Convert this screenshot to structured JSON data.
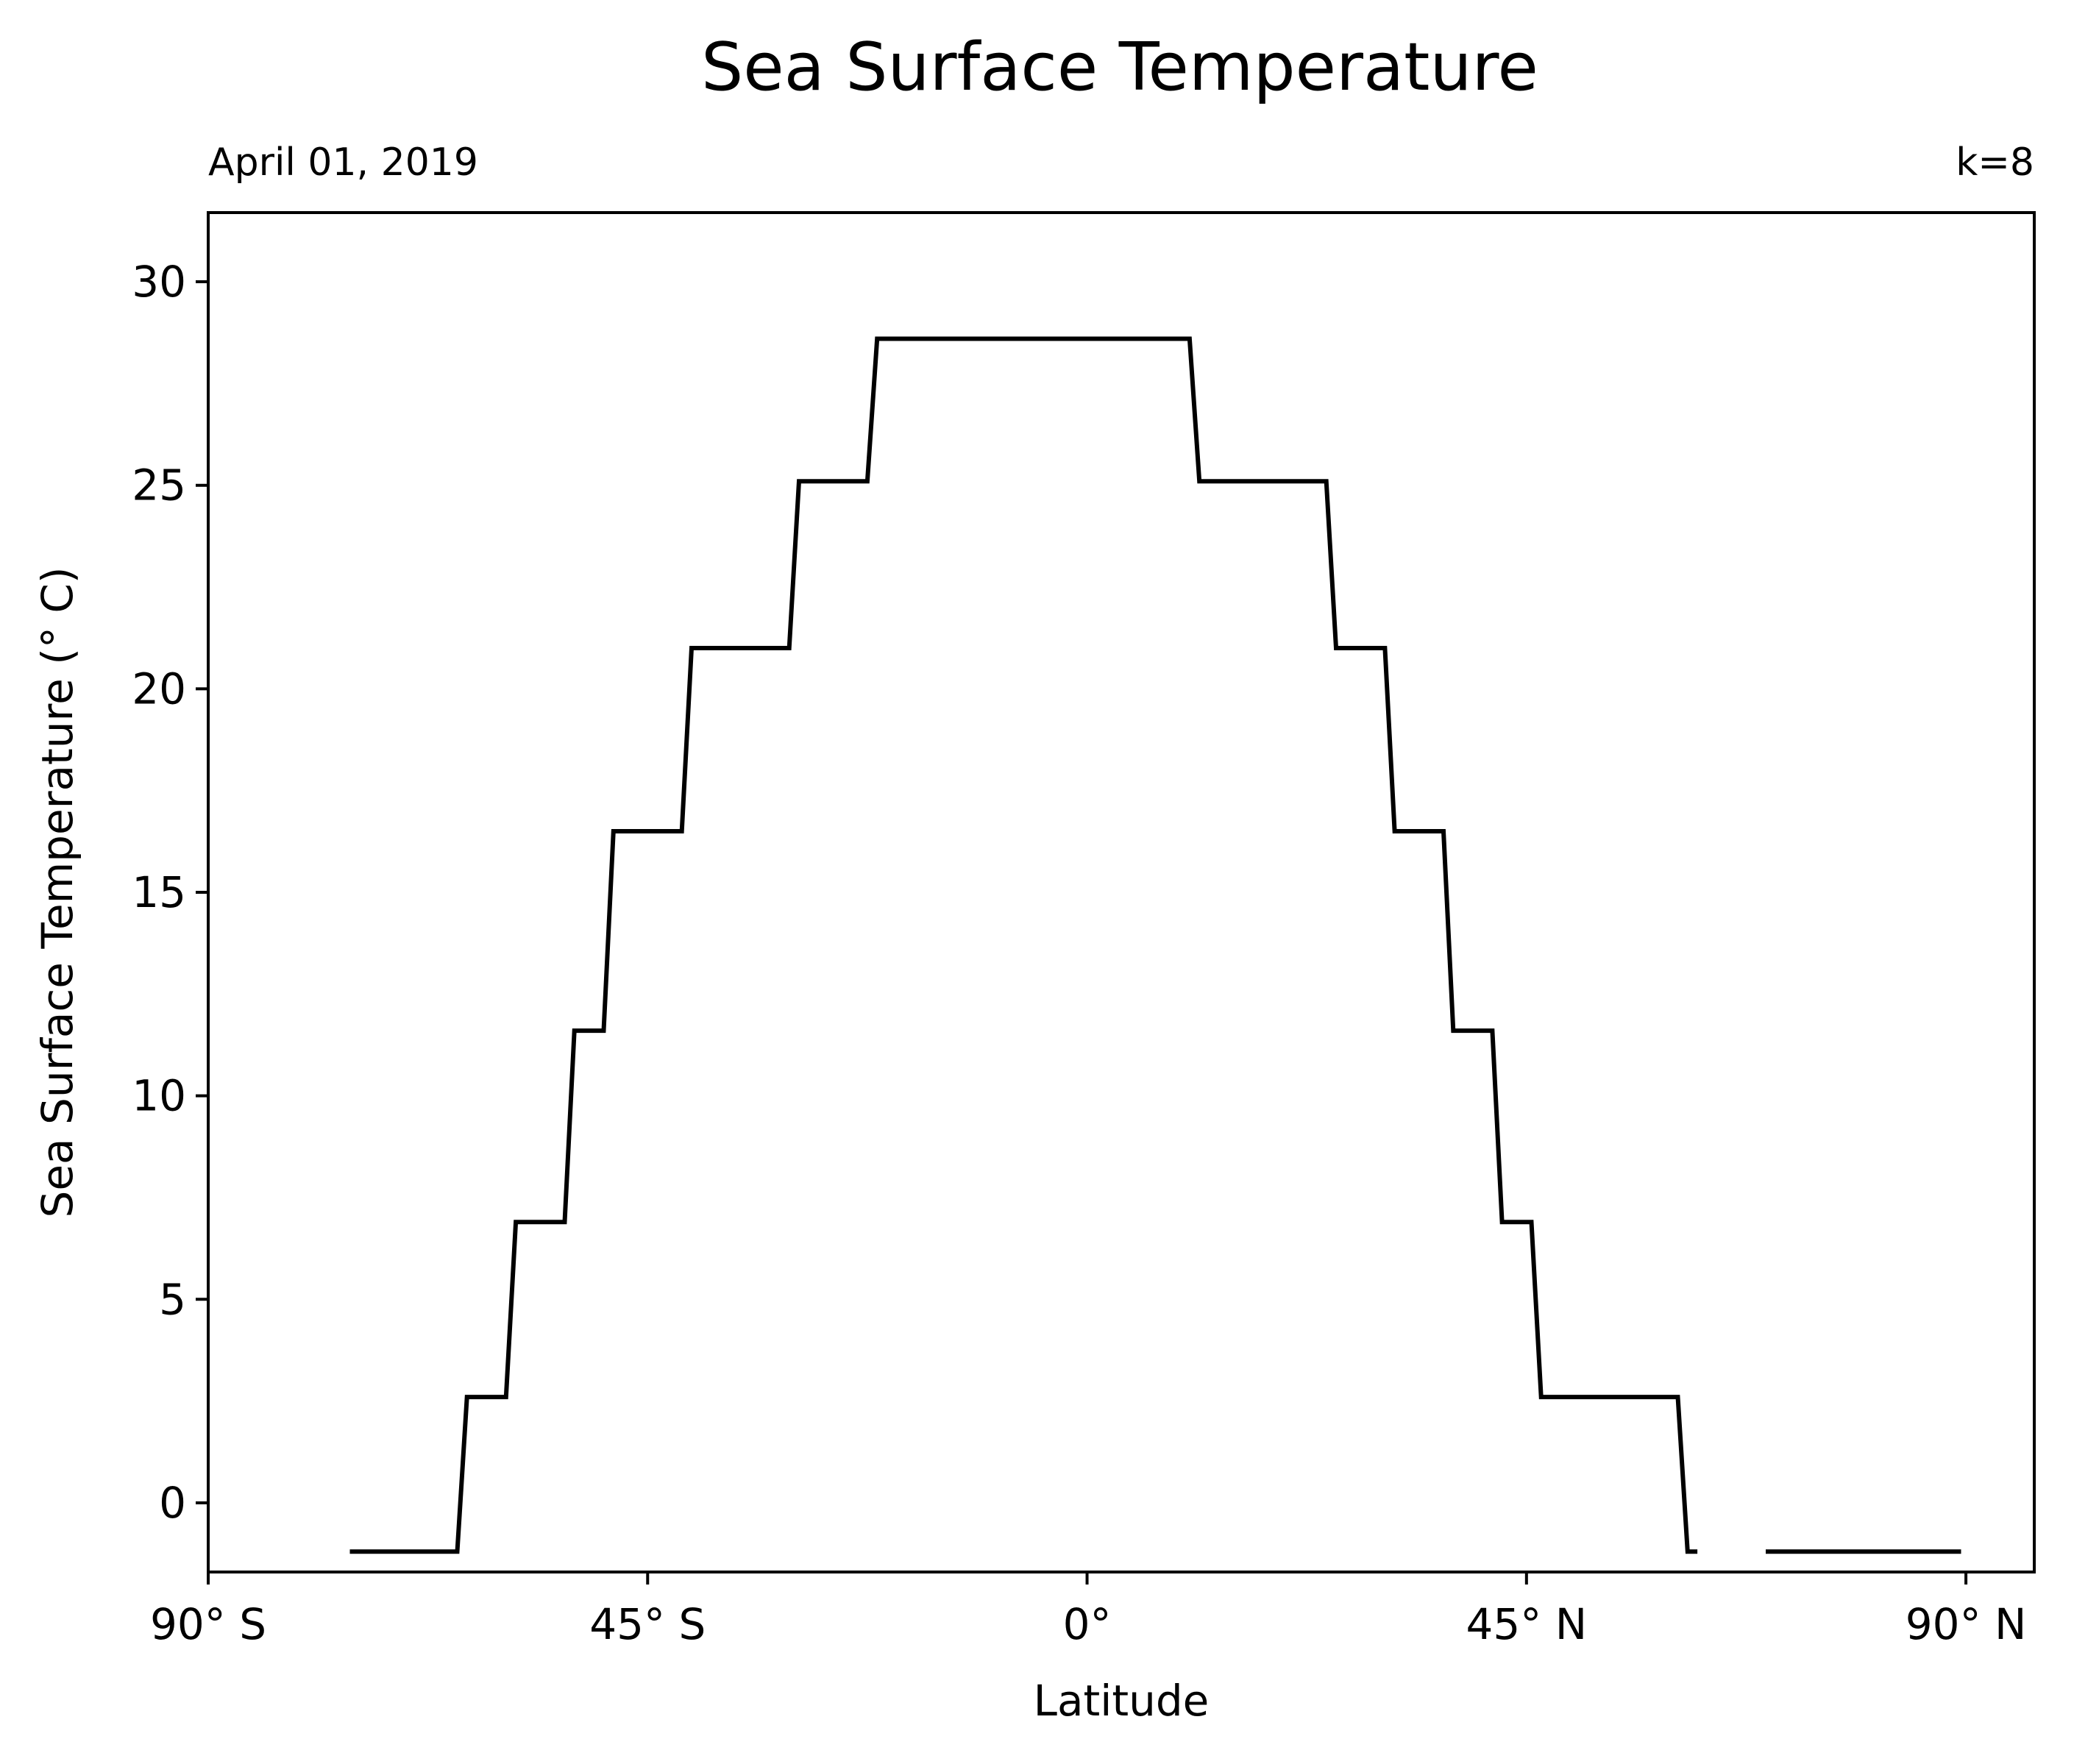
{
  "chart_data": {
    "type": "line",
    "title": "Sea Surface Temperature",
    "subtitle_left": "April 01, 2019",
    "subtitle_right": "k=8",
    "xlabel": "Latitude",
    "ylabel": "Sea Surface Temperature (° C)",
    "xlim": [
      -90,
      97
    ],
    "ylim": [
      -1.7,
      31.7
    ],
    "xticks": [
      {
        "value": -90,
        "label": "90° S"
      },
      {
        "value": -45,
        "label": "45° S"
      },
      {
        "value": 0,
        "label": "0°"
      },
      {
        "value": 45,
        "label": "45° N"
      },
      {
        "value": 90,
        "label": "90° N"
      }
    ],
    "yticks": [
      {
        "value": 0,
        "label": "0"
      },
      {
        "value": 5,
        "label": "5"
      },
      {
        "value": 10,
        "label": "10"
      },
      {
        "value": 15,
        "label": "15"
      },
      {
        "value": 20,
        "label": "20"
      },
      {
        "value": 25,
        "label": "25"
      },
      {
        "value": 30,
        "label": "30"
      }
    ],
    "grid": false,
    "series": [
      {
        "color": "#000000",
        "segments": [
          [
            [
              -75.5,
              -1.2
            ],
            [
              -64.5,
              -1.2
            ],
            [
              -63.5,
              2.6
            ],
            [
              -59.5,
              2.6
            ],
            [
              -58.5,
              6.9
            ],
            [
              -53.5,
              6.9
            ],
            [
              -52.5,
              11.6
            ],
            [
              -49.5,
              11.6
            ],
            [
              -48.5,
              16.5
            ],
            [
              -41.5,
              16.5
            ],
            [
              -40.5,
              21.0
            ],
            [
              -30.5,
              21.0
            ],
            [
              -29.5,
              25.1
            ],
            [
              -22.5,
              25.1
            ],
            [
              -21.5,
              28.6
            ],
            [
              10.5,
              28.6
            ],
            [
              11.5,
              25.1
            ],
            [
              24.5,
              25.1
            ],
            [
              25.5,
              21.0
            ],
            [
              30.5,
              21.0
            ],
            [
              31.5,
              16.5
            ],
            [
              36.5,
              16.5
            ],
            [
              37.5,
              11.6
            ],
            [
              41.5,
              11.6
            ],
            [
              42.5,
              6.9
            ],
            [
              45.5,
              6.9
            ],
            [
              46.5,
              2.6
            ],
            [
              60.5,
              2.6
            ],
            [
              61.5,
              -1.2
            ],
            [
              62.5,
              -1.2
            ]
          ],
          [
            [
              69.5,
              -1.2
            ],
            [
              89.5,
              -1.2
            ]
          ]
        ]
      }
    ]
  }
}
